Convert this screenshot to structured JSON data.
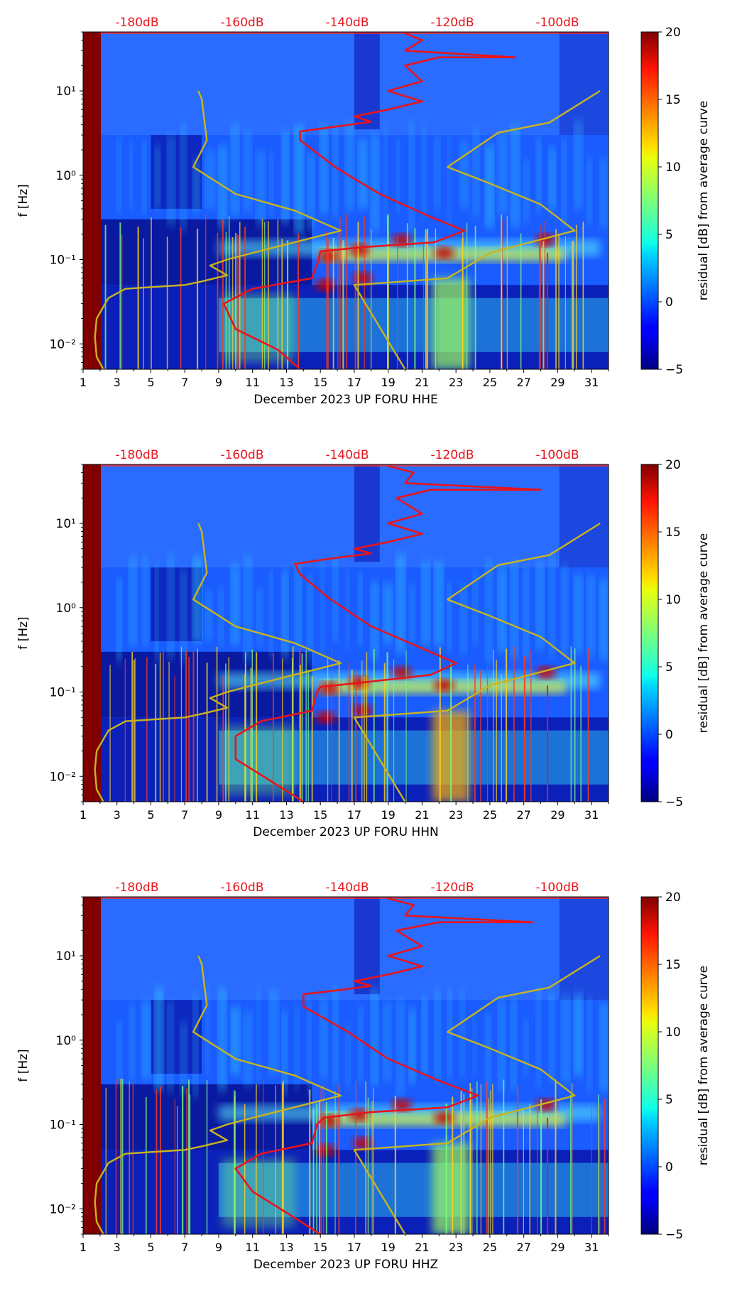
{
  "chart_data": [
    {
      "type": "heatmap",
      "title": "",
      "xlabel": "December 2023 UP FORU  HHE",
      "ylabel": "f [Hz]",
      "x_ticks": [
        "1",
        "3",
        "5",
        "7",
        "9",
        "11",
        "13",
        "15",
        "17",
        "19",
        "21",
        "23",
        "25",
        "27",
        "29",
        "31"
      ],
      "y_ticks": [
        "10⁻²",
        "10⁻¹",
        "10⁰",
        "10¹"
      ],
      "top_ticks": [
        "-180dB",
        "-160dB",
        "-140dB",
        "-120dB",
        "-100dB"
      ],
      "xlim": [
        1,
        32
      ],
      "ylim_hz": [
        0.005,
        50
      ],
      "colorbar": {
        "label": "residual [dB] from average curve",
        "ticks": [
          "−5",
          "0",
          "5",
          "10",
          "15",
          "20"
        ],
        "range": [
          -5,
          20
        ]
      },
      "series": [
        {
          "name": "",
          "color": "#e8141c",
          "points": [
            [
              13.8,
              0.005
            ],
            [
              12.5,
              0.0085
            ],
            [
              10,
              0.015
            ],
            [
              9.3,
              0.03
            ],
            [
              11,
              0.045
            ],
            [
              14.5,
              0.06
            ],
            [
              14.9,
              0.1
            ],
            [
              15,
              0.125
            ],
            [
              17.5,
              0.14
            ],
            [
              21.7,
              0.16
            ],
            [
              23.5,
              0.22
            ],
            [
              21.5,
              0.32
            ],
            [
              18.5,
              0.6
            ],
            [
              16,
              1.2
            ],
            [
              13.8,
              2.6
            ],
            [
              13.8,
              3.3
            ],
            [
              16,
              3.8
            ],
            [
              18,
              4.3
            ],
            [
              17,
              5
            ],
            [
              19,
              6
            ],
            [
              21,
              7.5
            ],
            [
              19,
              10
            ],
            [
              21,
              13
            ],
            [
              20,
              20
            ],
            [
              22,
              25
            ],
            [
              26.5,
              25
            ],
            [
              20,
              30
            ],
            [
              21,
              40
            ],
            [
              20,
              48
            ]
          ]
        },
        {
          "name": "",
          "color": "#c8b41e",
          "points": [
            [
              2.2,
              0.005
            ],
            [
              1.8,
              0.007
            ],
            [
              1.7,
              0.012
            ],
            [
              1.8,
              0.02
            ],
            [
              2.5,
              0.035
            ],
            [
              3.5,
              0.045
            ],
            [
              7,
              0.05
            ],
            [
              8,
              0.055
            ],
            [
              9.5,
              0.065
            ],
            [
              8.5,
              0.085
            ],
            [
              9.5,
              0.1
            ],
            [
              11,
              0.12
            ],
            [
              16.2,
              0.22
            ],
            [
              13.5,
              0.38
            ],
            [
              10,
              0.6
            ],
            [
              7.5,
              1.25
            ],
            [
              8.3,
              2.6
            ],
            [
              8,
              8
            ],
            [
              7.8,
              10
            ]
          ]
        },
        {
          "name": "",
          "color": "#c8b41e",
          "points": [
            [
              20,
              0.005
            ],
            [
              17,
              0.05
            ],
            [
              22.5,
              0.06
            ],
            [
              25,
              0.12
            ],
            [
              30,
              0.22
            ],
            [
              28,
              0.45
            ],
            [
              25,
              0.8
            ],
            [
              22.5,
              1.25
            ],
            [
              25.5,
              3.2
            ],
            [
              28.5,
              4.2
            ],
            [
              31.5,
              10
            ]
          ]
        }
      ]
    },
    {
      "type": "heatmap",
      "title": "",
      "xlabel": "December 2023 UP FORU  HHN",
      "ylabel": "f [Hz]",
      "x_ticks": [
        "1",
        "3",
        "5",
        "7",
        "9",
        "11",
        "13",
        "15",
        "17",
        "19",
        "21",
        "23",
        "25",
        "27",
        "29",
        "31"
      ],
      "y_ticks": [
        "10⁻²",
        "10⁻¹",
        "10⁰",
        "10¹"
      ],
      "top_ticks": [
        "-180dB",
        "-160dB",
        "-140dB",
        "-120dB",
        "-100dB"
      ],
      "xlim": [
        1,
        32
      ],
      "ylim_hz": [
        0.005,
        50
      ],
      "colorbar": {
        "label": "residual [dB] from average curve",
        "ticks": [
          "−5",
          "0",
          "5",
          "10",
          "15",
          "20"
        ],
        "range": [
          -5,
          20
        ]
      },
      "series": [
        {
          "name": "",
          "color": "#e8141c",
          "points": [
            [
              14,
              0.005
            ],
            [
              12,
              0.009
            ],
            [
              10,
              0.016
            ],
            [
              10,
              0.03
            ],
            [
              11.5,
              0.045
            ],
            [
              14.5,
              0.06
            ],
            [
              14.8,
              0.1
            ],
            [
              15,
              0.115
            ],
            [
              17.5,
              0.13
            ],
            [
              21.5,
              0.16
            ],
            [
              23,
              0.22
            ],
            [
              21,
              0.33
            ],
            [
              18,
              0.6
            ],
            [
              15.5,
              1.3
            ],
            [
              13.8,
              2.5
            ],
            [
              13.5,
              3.3
            ],
            [
              15.5,
              3.8
            ],
            [
              18,
              4.4
            ],
            [
              17,
              5
            ],
            [
              19,
              6
            ],
            [
              21,
              7.5
            ],
            [
              19,
              10
            ],
            [
              21,
              13
            ],
            [
              19.5,
              20
            ],
            [
              21.5,
              25
            ],
            [
              28,
              25
            ],
            [
              20,
              30
            ],
            [
              20.5,
              40
            ],
            [
              19,
              48
            ]
          ]
        },
        {
          "name": "",
          "color": "#c8b41e",
          "points": [
            [
              2.2,
              0.005
            ],
            [
              1.8,
              0.007
            ],
            [
              1.7,
              0.012
            ],
            [
              1.8,
              0.02
            ],
            [
              2.5,
              0.035
            ],
            [
              3.5,
              0.045
            ],
            [
              7,
              0.05
            ],
            [
              8,
              0.055
            ],
            [
              9.5,
              0.065
            ],
            [
              8.5,
              0.085
            ],
            [
              9.5,
              0.1
            ],
            [
              11,
              0.12
            ],
            [
              16.2,
              0.22
            ],
            [
              13.5,
              0.38
            ],
            [
              10,
              0.6
            ],
            [
              7.5,
              1.25
            ],
            [
              8.3,
              2.6
            ],
            [
              8,
              8
            ],
            [
              7.8,
              10
            ]
          ]
        },
        {
          "name": "",
          "color": "#c8b41e",
          "points": [
            [
              20,
              0.005
            ],
            [
              17,
              0.05
            ],
            [
              22.5,
              0.06
            ],
            [
              25,
              0.12
            ],
            [
              30,
              0.22
            ],
            [
              28,
              0.45
            ],
            [
              25,
              0.8
            ],
            [
              22.5,
              1.25
            ],
            [
              25.5,
              3.2
            ],
            [
              28.5,
              4.2
            ],
            [
              31.5,
              10
            ]
          ]
        }
      ]
    },
    {
      "type": "heatmap",
      "title": "",
      "xlabel": "December 2023 UP FORU  HHZ",
      "ylabel": "f [Hz]",
      "x_ticks": [
        "1",
        "3",
        "5",
        "7",
        "9",
        "11",
        "13",
        "15",
        "17",
        "19",
        "21",
        "23",
        "25",
        "27",
        "29",
        "31"
      ],
      "y_ticks": [
        "10⁻²",
        "10⁻¹",
        "10⁰",
        "10¹"
      ],
      "top_ticks": [
        "-180dB",
        "-160dB",
        "-140dB",
        "-120dB",
        "-100dB"
      ],
      "xlim": [
        1,
        32
      ],
      "ylim_hz": [
        0.005,
        50
      ],
      "colorbar": {
        "label": "residual [dB] from average curve",
        "ticks": [
          "−5",
          "0",
          "5",
          "10",
          "15",
          "20"
        ],
        "range": [
          -5,
          20
        ]
      },
      "series": [
        {
          "name": "",
          "color": "#e8141c",
          "points": [
            [
              15,
              0.005
            ],
            [
              13,
              0.009
            ],
            [
              11,
              0.016
            ],
            [
              10,
              0.03
            ],
            [
              11.5,
              0.045
            ],
            [
              14.5,
              0.06
            ],
            [
              14.8,
              0.1
            ],
            [
              15.2,
              0.12
            ],
            [
              18,
              0.14
            ],
            [
              22.5,
              0.16
            ],
            [
              24.3,
              0.22
            ],
            [
              22,
              0.33
            ],
            [
              19,
              0.6
            ],
            [
              16.5,
              1.3
            ],
            [
              14,
              2.5
            ],
            [
              14,
              3.5
            ],
            [
              16,
              3.9
            ],
            [
              18,
              4.4
            ],
            [
              17,
              5
            ],
            [
              19,
              6
            ],
            [
              21,
              7.5
            ],
            [
              19,
              10
            ],
            [
              21,
              13
            ],
            [
              19.5,
              20
            ],
            [
              22,
              25
            ],
            [
              27.5,
              25
            ],
            [
              20,
              30
            ],
            [
              20.5,
              40
            ],
            [
              19,
              48
            ]
          ]
        },
        {
          "name": "",
          "color": "#c8b41e",
          "points": [
            [
              2.2,
              0.005
            ],
            [
              1.8,
              0.007
            ],
            [
              1.7,
              0.012
            ],
            [
              1.8,
              0.02
            ],
            [
              2.5,
              0.035
            ],
            [
              3.5,
              0.045
            ],
            [
              7,
              0.05
            ],
            [
              8,
              0.055
            ],
            [
              9.5,
              0.065
            ],
            [
              8.5,
              0.085
            ],
            [
              9.5,
              0.1
            ],
            [
              11,
              0.12
            ],
            [
              16.2,
              0.22
            ],
            [
              13.5,
              0.38
            ],
            [
              10,
              0.6
            ],
            [
              7.5,
              1.25
            ],
            [
              8.3,
              2.6
            ],
            [
              8,
              8
            ],
            [
              7.8,
              10
            ]
          ]
        },
        {
          "name": "",
          "color": "#c8b41e",
          "points": [
            [
              20,
              0.005
            ],
            [
              17,
              0.05
            ],
            [
              22.5,
              0.06
            ],
            [
              25,
              0.12
            ],
            [
              30,
              0.22
            ],
            [
              28,
              0.45
            ],
            [
              25,
              0.8
            ],
            [
              22.5,
              1.25
            ],
            [
              25.5,
              3.2
            ],
            [
              28.5,
              4.2
            ],
            [
              31.5,
              10
            ]
          ]
        }
      ]
    }
  ]
}
